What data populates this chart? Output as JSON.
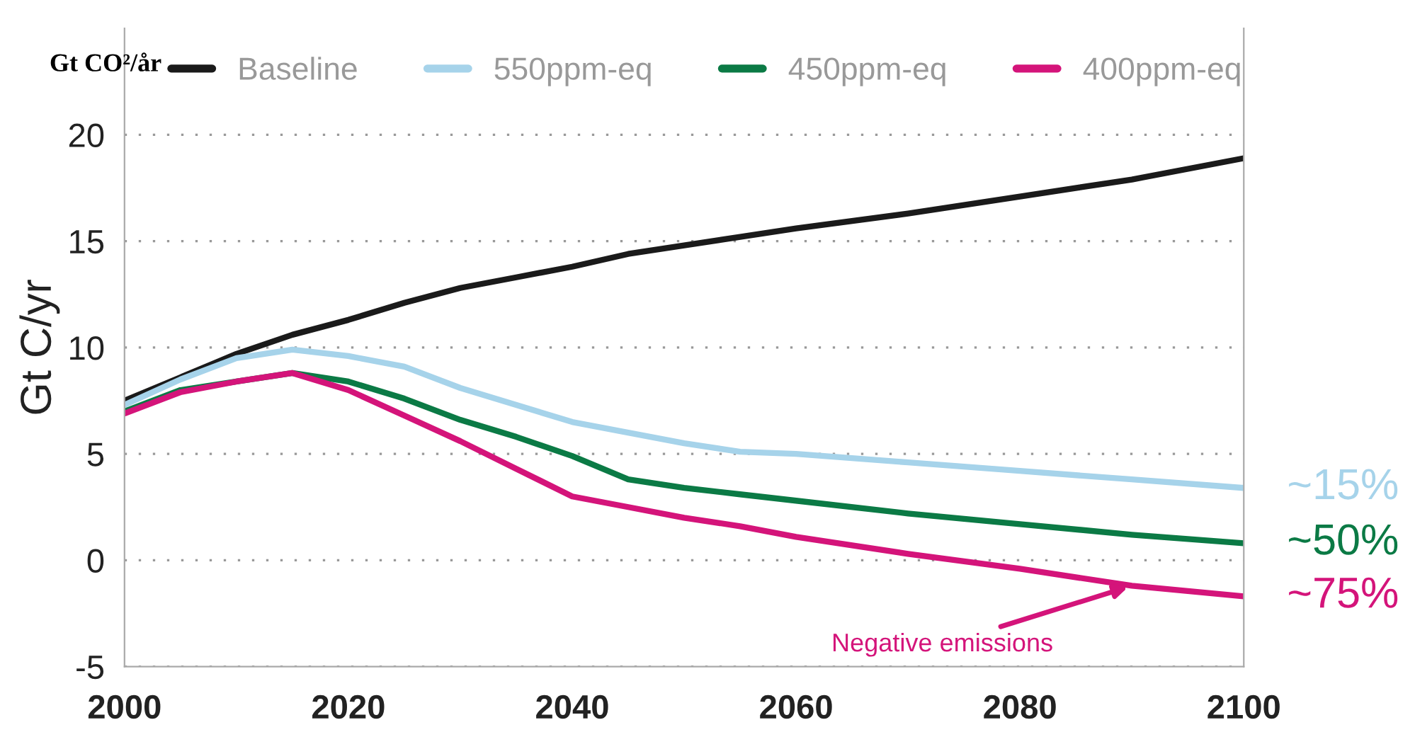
{
  "chart_data": {
    "type": "line",
    "ylabel": "Gt C/yr",
    "x": [
      2000,
      2005,
      2010,
      2015,
      2020,
      2025,
      2030,
      2035,
      2040,
      2045,
      2050,
      2055,
      2060,
      2070,
      2080,
      2090,
      2100
    ],
    "series": [
      {
        "name": "Baseline",
        "color": "#1a1a1a",
        "values": [
          7.5,
          8.6,
          9.7,
          10.6,
          11.3,
          12.1,
          12.8,
          13.3,
          13.8,
          14.4,
          14.8,
          15.2,
          15.6,
          16.3,
          17.1,
          17.9,
          18.9
        ]
      },
      {
        "name": "550ppm-eq",
        "color": "#a6d3ea",
        "values": [
          7.3,
          8.5,
          9.5,
          9.9,
          9.6,
          9.1,
          8.1,
          7.3,
          6.5,
          6.0,
          5.5,
          5.1,
          5.0,
          4.6,
          4.2,
          3.8,
          3.4
        ]
      },
      {
        "name": "450ppm-eq",
        "color": "#0b7a45",
        "values": [
          7.0,
          8.0,
          8.4,
          8.8,
          8.4,
          7.6,
          6.6,
          5.8,
          4.9,
          3.8,
          3.4,
          3.1,
          2.8,
          2.2,
          1.7,
          1.2,
          0.8
        ]
      },
      {
        "name": "400ppm-eq",
        "color": "#d4147a",
        "values": [
          6.9,
          7.9,
          8.4,
          8.8,
          8.0,
          6.8,
          5.6,
          4.3,
          3.0,
          2.5,
          2.0,
          1.6,
          1.1,
          0.3,
          -0.4,
          -1.2,
          -1.7
        ]
      }
    ],
    "xlim": [
      2000,
      2100
    ],
    "xticks": [
      2000,
      2020,
      2040,
      2060,
      2080,
      2100
    ],
    "ylim": [
      -5,
      25
    ],
    "yticks": [
      -5,
      0,
      5,
      10,
      15,
      20
    ],
    "grid": "y",
    "legend": "top",
    "line_style": "solid",
    "annotations": [
      "Gt CO²/år",
      "~15%",
      "~50%",
      "~75%",
      {
        "text": "Negative emissions",
        "x": 2090,
        "y": -1.2
      }
    ]
  }
}
